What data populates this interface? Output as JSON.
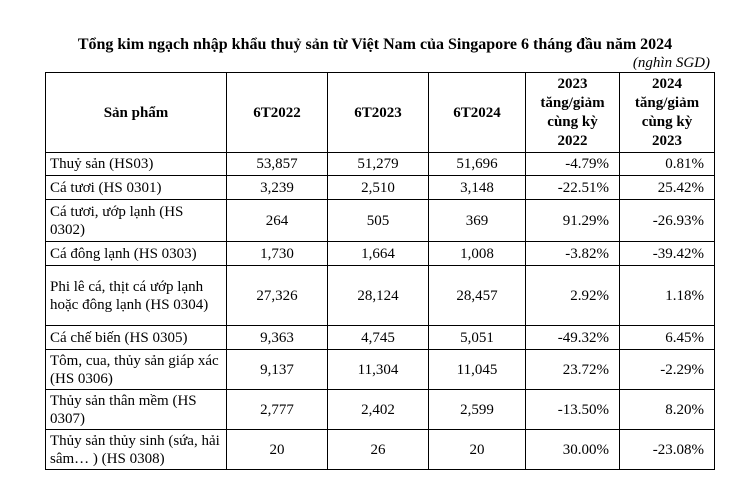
{
  "title": "Tổng kim ngạch nhập khẩu thuỷ sản từ Việt Nam của Singapore 6 tháng đầu năm 2024",
  "unit": "(nghìn SGD)",
  "headers": {
    "product": "Sản phẩm",
    "y2022": "6T2022",
    "y2023": "6T2023",
    "y2024": "6T2024",
    "chg2023": [
      "2023",
      "tăng/giảm",
      "cùng kỳ",
      "2022"
    ],
    "chg2024": [
      "2024",
      "tăng/giảm",
      "cùng kỳ",
      "2023"
    ]
  },
  "rows": [
    {
      "product": "Thuỷ sản (HS03)",
      "v2022": "53,857",
      "v2023": "51,279",
      "v2024": "51,696",
      "chg2023": "-4.79%",
      "chg2024": "0.81%"
    },
    {
      "product": "Cá tươi (HS 0301)",
      "v2022": "3,239",
      "v2023": "2,510",
      "v2024": "3,148",
      "chg2023": "-22.51%",
      "chg2024": "25.42%"
    },
    {
      "product": "Cá tươi, ướp lạnh  (HS 0302)",
      "v2022": "264",
      "v2023": "505",
      "v2024": "369",
      "chg2023": "91.29%",
      "chg2024": "-26.93%"
    },
    {
      "product": "Cá  đông lạnh  (HS 0303)",
      "v2022": "1,730",
      "v2023": "1,664",
      "v2024": "1,008",
      "chg2023": "-3.82%",
      "chg2024": "-39.42%"
    },
    {
      "product": "Phi lê cá, thịt cá ướp lạnh hoặc đông lạnh  (HS 0304)",
      "v2022": "27,326",
      "v2023": "28,124",
      "v2024": "28,457",
      "chg2023": "2.92%",
      "chg2024": "1.18%"
    },
    {
      "product": "Cá chế biến  (HS 0305)",
      "v2022": "9,363",
      "v2023": "4,745",
      "v2024": "5,051",
      "chg2023": "-49.32%",
      "chg2024": "6.45%"
    },
    {
      "product": "Tôm, cua, thủy sản giáp xác (HS 0306)",
      "v2022": "9,137",
      "v2023": "11,304",
      "v2024": "11,045",
      "chg2023": "23.72%",
      "chg2024": "-2.29%"
    },
    {
      "product": "Thủy sản thân mềm  (HS 0307)",
      "v2022": "2,777",
      "v2023": "2,402",
      "v2024": "2,599",
      "chg2023": "-13.50%",
      "chg2024": "8.20%"
    },
    {
      "product": "Thủy sản thủy sinh (sứa, hải sâm… ) (HS 0308)",
      "v2022": "20",
      "v2023": "26",
      "v2024": "20",
      "chg2023": "30.00%",
      "chg2024": "-23.08%"
    }
  ]
}
